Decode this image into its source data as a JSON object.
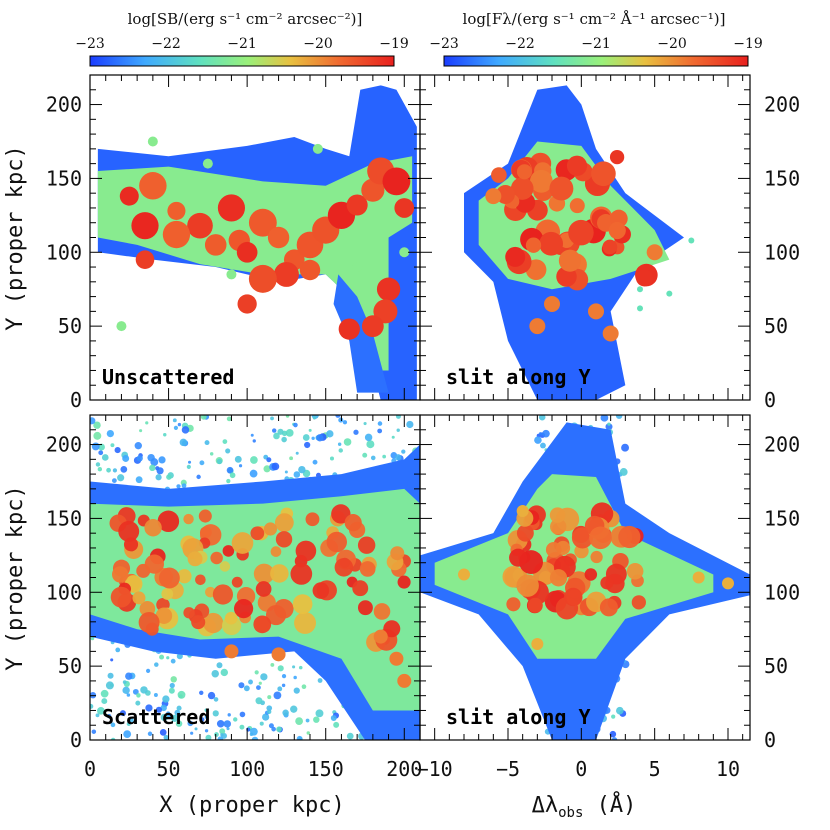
{
  "chart_data": {
    "type": "heatmap",
    "colorbars": [
      {
        "label": "log[SB/(erg s⁻¹ cm⁻² arcsec⁻²)]",
        "range": [
          -23,
          -19
        ],
        "ticks": [
          "−23",
          "−22",
          "−21",
          "−20",
          "−19"
        ]
      },
      {
        "label": "log[Fλ/(erg s⁻¹ cm⁻² Å⁻¹ arcsec⁻¹)]",
        "range": [
          -23,
          -19
        ],
        "ticks": [
          "−23",
          "−22",
          "−21",
          "−20",
          "−19"
        ]
      }
    ],
    "colormap": [
      "#1a3cff",
      "#3fa9ff",
      "#5fe0c0",
      "#9af07a",
      "#e8c040",
      "#f06a30",
      "#e8201e"
    ],
    "panels": [
      {
        "label": "Unscattered",
        "x_range": [
          0,
          210
        ],
        "y_range": [
          0,
          220
        ],
        "kind": "image"
      },
      {
        "label": "slit along Y",
        "x_range": [
          -11,
          11.5
        ],
        "y_range": [
          0,
          220
        ],
        "kind": "spectrum"
      },
      {
        "label": "Scattered",
        "x_range": [
          0,
          210
        ],
        "y_range": [
          0,
          220
        ],
        "kind": "image"
      },
      {
        "label": "slit along Y",
        "x_range": [
          -11,
          11.5
        ],
        "y_range": [
          0,
          220
        ],
        "kind": "spectrum"
      }
    ],
    "y_ticks": [
      "0",
      "50",
      "100",
      "150",
      "200"
    ],
    "x_ticks_left": [
      "0",
      "50",
      "100",
      "150",
      "200"
    ],
    "x_ticks_right": [
      "−10",
      "−5",
      "0",
      "5",
      "10"
    ],
    "ylabel": "Y (proper kpc)",
    "xlabel_left": "X (proper kpc)",
    "xlabel_right": "Δλobs  (Å)"
  }
}
